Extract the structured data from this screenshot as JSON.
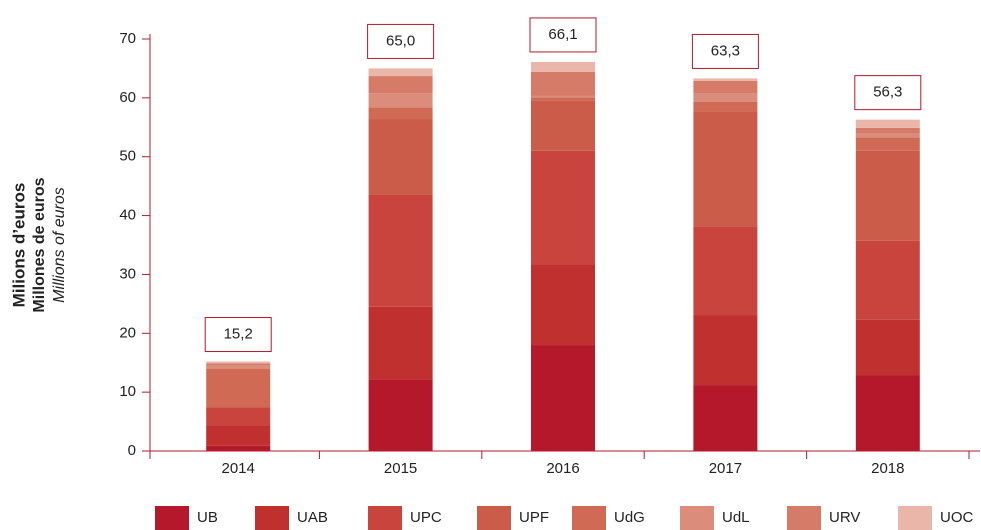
{
  "chart_data": {
    "type": "stacked_bar",
    "y_axis_labels": [
      "Milions d’euros",
      "Millones de euros",
      "Millions of euros"
    ],
    "categories": [
      "2014",
      "2015",
      "2016",
      "2017",
      "2018"
    ],
    "series": [
      {
        "name": "UB",
        "color": "#b5182b",
        "values": [
          0.9,
          12.2,
          18.0,
          11.2,
          12.9
        ]
      },
      {
        "name": "UAB",
        "color": "#c0302f",
        "values": [
          3.5,
          12.3,
          13.6,
          11.9,
          9.4
        ]
      },
      {
        "name": "UPC",
        "color": "#c8443d",
        "values": [
          3.0,
          19.0,
          19.4,
          15.1,
          13.4
        ]
      },
      {
        "name": "UPF",
        "color": "#cb5c4a",
        "values": [
          0,
          12.9,
          8.6,
          19.4,
          15.3
        ]
      },
      {
        "name": "UdG",
        "color": "#d06a55",
        "values": [
          6.6,
          2.0,
          0.5,
          1.7,
          2.3
        ]
      },
      {
        "name": "UdL",
        "color": "#db8c7b",
        "values": [
          0.5,
          2.4,
          0.3,
          1.4,
          0.6
        ]
      },
      {
        "name": "URV",
        "color": "#d57b67",
        "values": [
          0.4,
          2.9,
          4.0,
          2.2,
          1.0
        ]
      },
      {
        "name": "UOC",
        "color": "#e9b6a9",
        "values": [
          0.3,
          1.3,
          1.7,
          0.4,
          1.4
        ]
      }
    ],
    "totals": {
      "values": [
        15.2,
        65.0,
        66.1,
        63.3,
        56.3
      ],
      "value_labels": [
        "15,2",
        "65,0",
        "66,1",
        "63,3",
        "56,3"
      ]
    },
    "ylim": [
      0,
      70
    ],
    "yticks": [
      0,
      10,
      20,
      30,
      40,
      50,
      60,
      70
    ],
    "grid": false,
    "legend": "bottom"
  }
}
